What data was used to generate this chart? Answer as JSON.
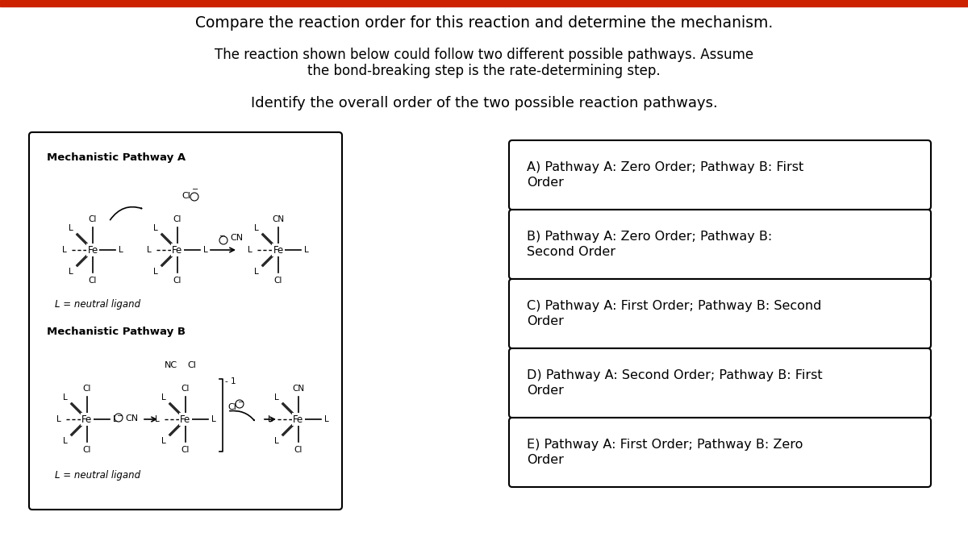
{
  "title": "Compare the reaction order for this reaction and determine the mechanism.",
  "subtitle1": "The reaction shown below could follow two different possible pathways. Assume",
  "subtitle2": "the bond-breaking step is the rate-determining step.",
  "subtitle3": "Identify the overall order of the two possible reaction pathways.",
  "top_bar_color": "#cc2200",
  "bg_color": "#ffffff",
  "answer_options": [
    "A) Pathway A: Zero Order; Pathway B: First\nOrder",
    "B) Pathway A: Zero Order; Pathway B:\nSecond Order",
    "C) Pathway A: First Order; Pathway B: Second\nOrder",
    "D) Pathway A: Second Order; Pathway B: First\nOrder",
    "E) Pathway A: First Order; Pathway B: Zero\nOrder"
  ],
  "pathway_a_label": "Mechanistic Pathway A",
  "pathway_b_label": "Mechanistic Pathway B",
  "neutral_ligand": "L = neutral ligand"
}
